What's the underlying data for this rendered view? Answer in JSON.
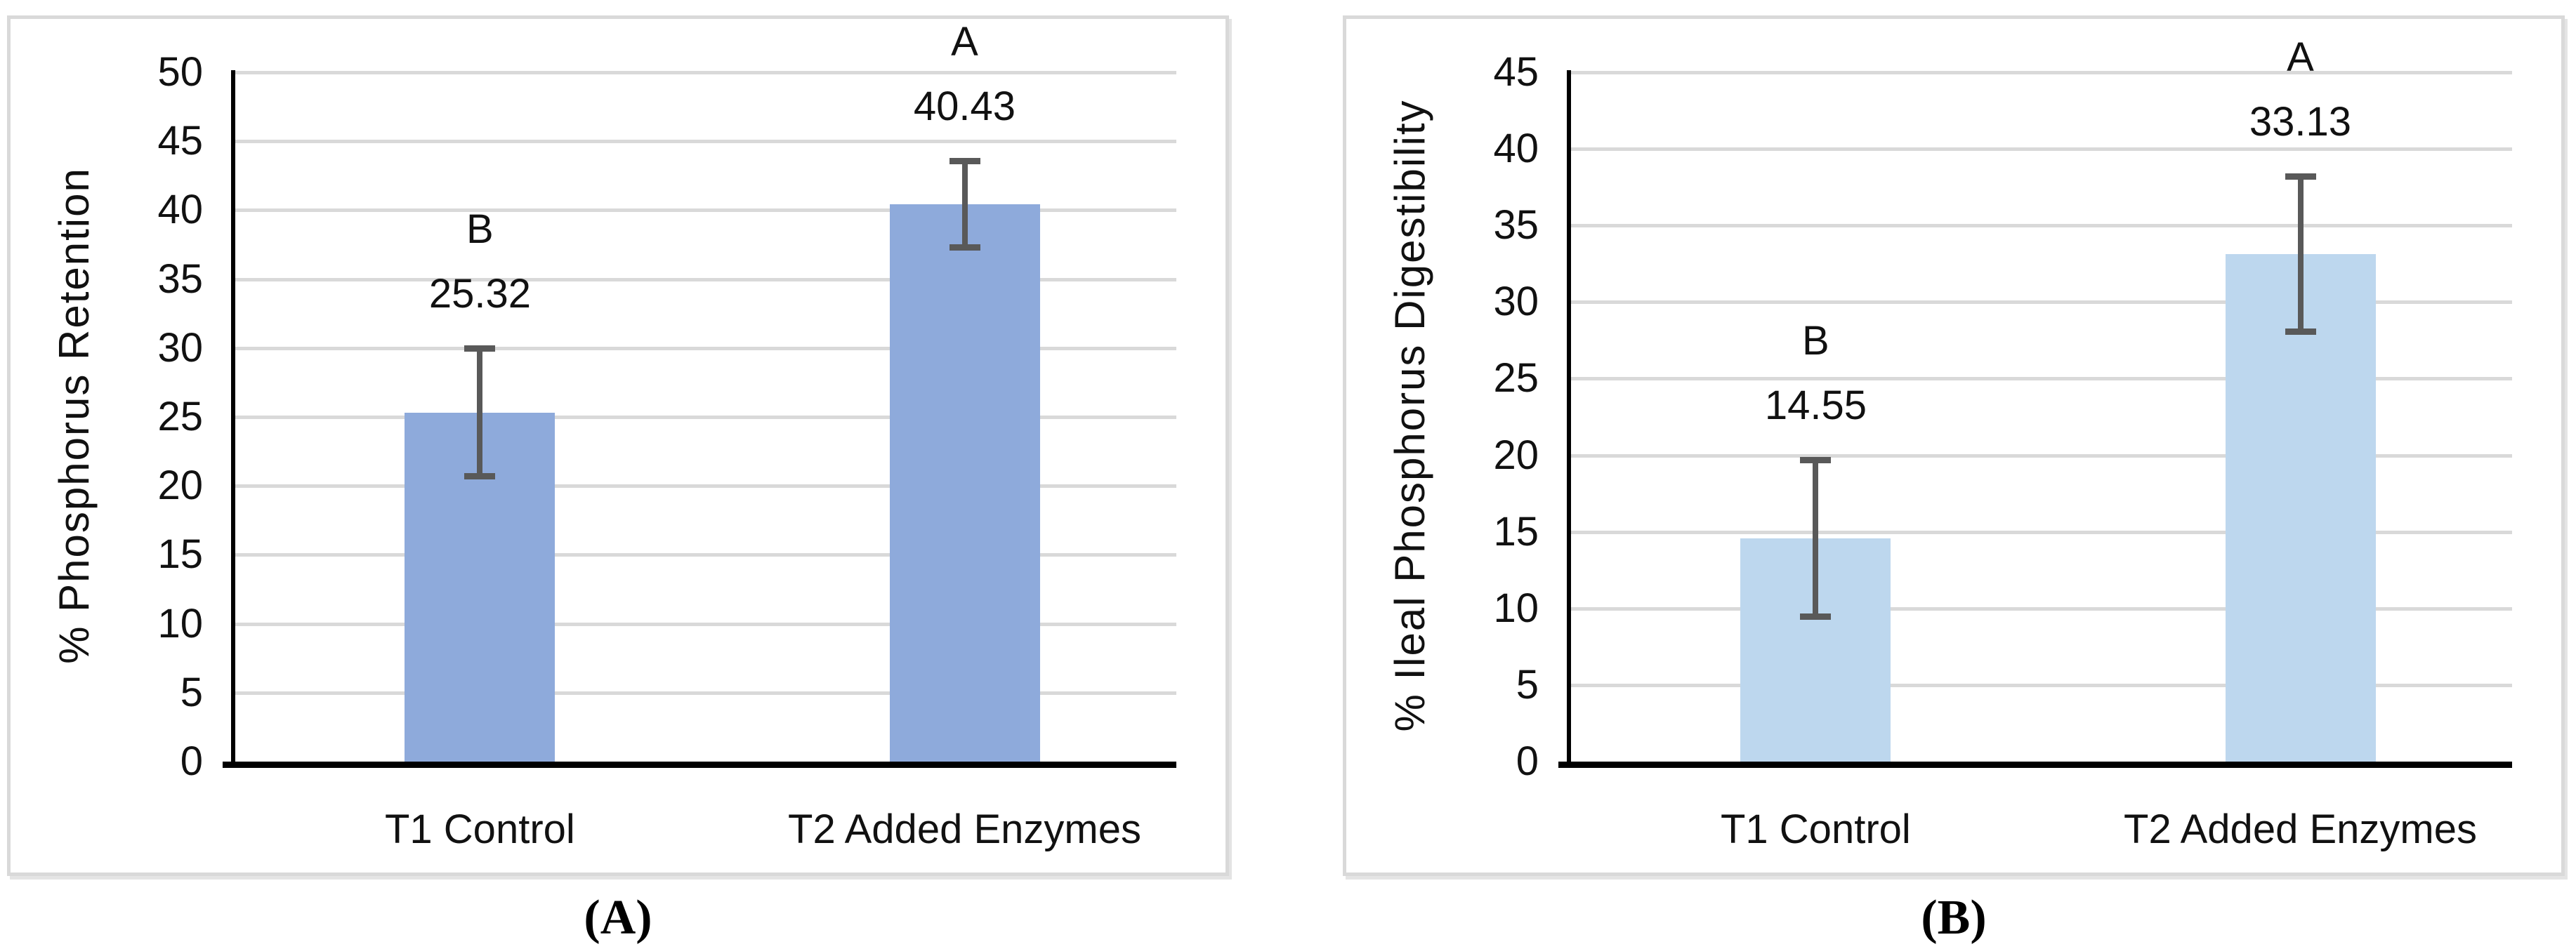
{
  "figure": {
    "background": "#FFFFFF",
    "panel_border_color": "#D9D9D9",
    "panels": [
      {
        "id": "A",
        "caption": "(A)"
      },
      {
        "id": "B",
        "caption": "(B)"
      }
    ]
  },
  "chart_data": [
    {
      "type": "bar",
      "title": "",
      "ylabel": "% Phosphorus Retention",
      "xlabel": "",
      "categories": [
        "T1 Control",
        "T2 Added Enzymes"
      ],
      "values": [
        25.32,
        40.43
      ],
      "value_labels": [
        "25.32",
        "40.43"
      ],
      "sig_letters": [
        "B",
        "A"
      ],
      "error_bars": [
        {
          "low": 20.7,
          "high": 30.0
        },
        {
          "low": 37.3,
          "high": 43.6
        }
      ],
      "ylim": [
        0,
        50
      ],
      "ytick_step": 5,
      "yticks": [
        50,
        45,
        40,
        35,
        30,
        25,
        20,
        15,
        10,
        5,
        0
      ],
      "grid": true,
      "legend": false,
      "bar_color": "#8EAADB",
      "gridline_color": "#D9D9D9",
      "error_bar_color": "#595959",
      "axis_color": "#000000",
      "caption": "(A)"
    },
    {
      "type": "bar",
      "title": "",
      "ylabel": "% Ileal Phosphorus Digestibility",
      "xlabel": "",
      "categories": [
        "T1 Control",
        "T2 Added Enzymes"
      ],
      "values": [
        14.55,
        33.13
      ],
      "value_labels": [
        "14.55",
        "33.13"
      ],
      "sig_letters": [
        "B",
        "A"
      ],
      "error_bars": [
        {
          "low": 9.5,
          "high": 19.7
        },
        {
          "low": 28.1,
          "high": 38.2
        }
      ],
      "ylim": [
        0,
        45
      ],
      "ytick_step": 5,
      "yticks": [
        45,
        40,
        35,
        30,
        25,
        20,
        15,
        10,
        5,
        0
      ],
      "grid": true,
      "legend": false,
      "bar_color": "#BDD7EE",
      "gridline_color": "#D9D9D9",
      "error_bar_color": "#595959",
      "axis_color": "#000000",
      "caption": "(B)"
    }
  ]
}
